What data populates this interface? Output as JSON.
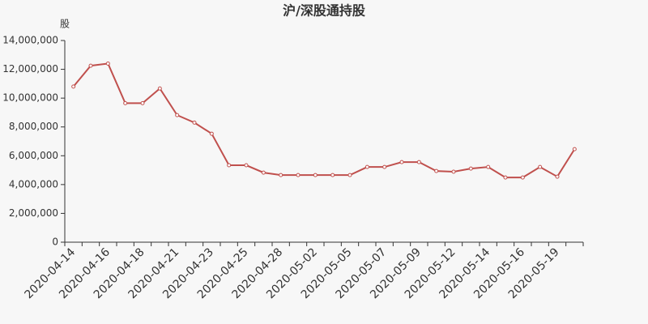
{
  "chart_data": {
    "type": "line",
    "title": "沪/深股通持股",
    "y_axis_label": "股",
    "categories": [
      "2020-04-14",
      null,
      "2020-04-16",
      null,
      "2020-04-18",
      null,
      "2020-04-21",
      null,
      "2020-04-23",
      null,
      "2020-04-25",
      null,
      "2020-04-28",
      null,
      "2020-05-02",
      null,
      "2020-05-05",
      null,
      "2020-05-07",
      null,
      "2020-05-09",
      null,
      "2020-05-12",
      null,
      "2020-05-14",
      null,
      "2020-05-16",
      null,
      "2020-05-19",
      null
    ],
    "values": [
      10800000,
      12250000,
      12400000,
      9650000,
      9650000,
      10670000,
      8820000,
      8300000,
      7530000,
      5340000,
      5340000,
      4830000,
      4660000,
      4660000,
      4660000,
      4660000,
      4660000,
      5220000,
      5220000,
      5560000,
      5560000,
      4940000,
      4890000,
      5110000,
      5220000,
      4490000,
      4490000,
      5220000,
      4550000,
      6460000
    ],
    "color": "#c0504d",
    "ylim": [
      0,
      14000000
    ],
    "yticks": [
      0,
      {
        "value": 2000000,
        "label": "2,000,000"
      },
      {
        "value": 4000000,
        "label": "4,000,000"
      },
      {
        "value": 6000000,
        "label": "6,000,000"
      },
      {
        "value": 8000000,
        "label": "8,000,000"
      },
      {
        "value": 10000000,
        "label": "10,000,000"
      },
      {
        "value": 12000000,
        "label": "12,000,000"
      },
      {
        "value": 14000000,
        "label": "14,000,000"
      }
    ]
  }
}
